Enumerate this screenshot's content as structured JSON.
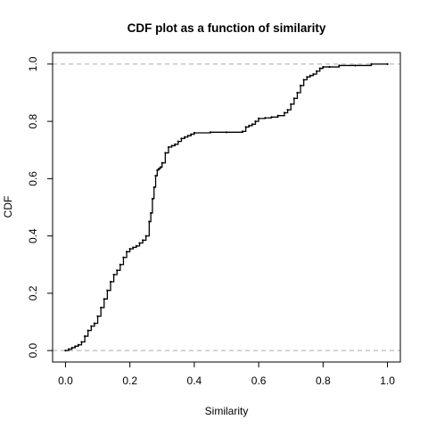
{
  "chart_data": {
    "type": "line",
    "title": "CDF plot as a function of similarity",
    "xlabel": "Similarity",
    "ylabel": "CDF",
    "xlim": [
      -0.04,
      1.04
    ],
    "ylim": [
      -0.04,
      1.04
    ],
    "x_ticks": [
      "0.0",
      "0.2",
      "0.4",
      "0.6",
      "0.8",
      "1.0"
    ],
    "y_ticks": [
      "0.0",
      "0.2",
      "0.4",
      "0.6",
      "0.8",
      "1.0"
    ],
    "reference_lines": [
      0.0,
      1.0
    ],
    "grid": false,
    "colors": {
      "series": "#000000",
      "reference": "#aaaaaa"
    },
    "series": [
      {
        "x": [
          0.0,
          0.01,
          0.02,
          0.03,
          0.04,
          0.05,
          0.06,
          0.07,
          0.08,
          0.09,
          0.1,
          0.11,
          0.12,
          0.13,
          0.14,
          0.15,
          0.16,
          0.17,
          0.18,
          0.19,
          0.2,
          0.21,
          0.22,
          0.23,
          0.24,
          0.25,
          0.26,
          0.265,
          0.27,
          0.275,
          0.28,
          0.285,
          0.29,
          0.295,
          0.3,
          0.31,
          0.32,
          0.33,
          0.34,
          0.35,
          0.36,
          0.37,
          0.38,
          0.39,
          0.4,
          0.45,
          0.5,
          0.55,
          0.56,
          0.57,
          0.58,
          0.59,
          0.6,
          0.62,
          0.64,
          0.66,
          0.68,
          0.69,
          0.7,
          0.71,
          0.72,
          0.73,
          0.74,
          0.75,
          0.76,
          0.77,
          0.78,
          0.79,
          0.8,
          0.82,
          0.85,
          0.9,
          0.95,
          1.0
        ],
        "y": [
          0.0,
          0.005,
          0.01,
          0.015,
          0.02,
          0.03,
          0.05,
          0.07,
          0.085,
          0.095,
          0.12,
          0.15,
          0.18,
          0.21,
          0.24,
          0.265,
          0.28,
          0.3,
          0.325,
          0.345,
          0.355,
          0.36,
          0.365,
          0.375,
          0.385,
          0.4,
          0.45,
          0.48,
          0.53,
          0.57,
          0.61,
          0.63,
          0.635,
          0.64,
          0.655,
          0.69,
          0.71,
          0.715,
          0.72,
          0.73,
          0.74,
          0.745,
          0.75,
          0.755,
          0.76,
          0.762,
          0.762,
          0.765,
          0.78,
          0.785,
          0.79,
          0.8,
          0.81,
          0.812,
          0.815,
          0.82,
          0.83,
          0.84,
          0.86,
          0.88,
          0.9,
          0.925,
          0.945,
          0.955,
          0.96,
          0.965,
          0.975,
          0.985,
          0.99,
          0.99,
          0.995,
          0.995,
          1.0,
          1.0
        ]
      }
    ]
  }
}
